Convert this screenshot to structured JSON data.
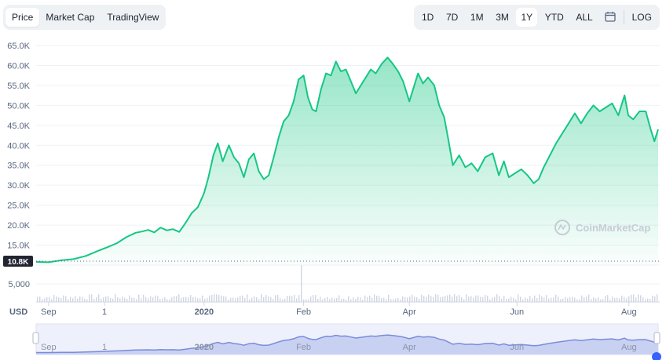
{
  "view_tabs": [
    {
      "label": "Price",
      "active": true
    },
    {
      "label": "Market Cap",
      "active": false
    },
    {
      "label": "TradingView",
      "active": false
    }
  ],
  "ranges": [
    {
      "label": "1D",
      "active": false
    },
    {
      "label": "7D",
      "active": false
    },
    {
      "label": "1M",
      "active": false
    },
    {
      "label": "3M",
      "active": false
    },
    {
      "label": "1Y",
      "active": true
    },
    {
      "label": "YTD",
      "active": false
    },
    {
      "label": "ALL",
      "active": false
    }
  ],
  "calendar_icon": "calendar-icon",
  "log_label": "LOG",
  "watermark": "CoinMarketCap",
  "currency_label": "USD",
  "colors": {
    "line": "#16c784",
    "navigator": "#7b8cd9",
    "label_bg": "#222531"
  },
  "chart_data": {
    "type": "area",
    "y_ticks": [
      "65.0K",
      "60.0K",
      "55.0K",
      "50.0K",
      "45.0K",
      "40.0K",
      "35.0K",
      "30.0K",
      "25.0K",
      "20.0K",
      "15.0K"
    ],
    "ylim": [
      10000,
      65000
    ],
    "start_price_label": "10.8K",
    "volume_tick": "5,000",
    "x_ticks": [
      "Sep",
      "1",
      "2020",
      "Feb",
      "Apr",
      "Jun",
      "Aug"
    ],
    "navigator_ticks": [
      "Sep",
      "1",
      "2020",
      "Feb",
      "Apr",
      "Jun",
      "Aug"
    ],
    "x_tick_pos": [
      0.02,
      0.11,
      0.27,
      0.43,
      0.6,
      0.773,
      0.953
    ],
    "price": [
      [
        0.0,
        10800
      ],
      [
        0.02,
        10700
      ],
      [
        0.04,
        11200
      ],
      [
        0.06,
        11500
      ],
      [
        0.08,
        12300
      ],
      [
        0.1,
        13600
      ],
      [
        0.115,
        14500
      ],
      [
        0.13,
        15500
      ],
      [
        0.145,
        17000
      ],
      [
        0.16,
        18100
      ],
      [
        0.17,
        18400
      ],
      [
        0.18,
        18800
      ],
      [
        0.19,
        18200
      ],
      [
        0.2,
        19400
      ],
      [
        0.21,
        18700
      ],
      [
        0.22,
        19000
      ],
      [
        0.23,
        18300
      ],
      [
        0.24,
        20500
      ],
      [
        0.25,
        23000
      ],
      [
        0.26,
        24500
      ],
      [
        0.27,
        28000
      ],
      [
        0.277,
        32000
      ],
      [
        0.285,
        37500
      ],
      [
        0.292,
        40500
      ],
      [
        0.3,
        36000
      ],
      [
        0.31,
        40000
      ],
      [
        0.318,
        37000
      ],
      [
        0.326,
        35500
      ],
      [
        0.334,
        32000
      ],
      [
        0.342,
        36500
      ],
      [
        0.35,
        38000
      ],
      [
        0.358,
        33500
      ],
      [
        0.366,
        31500
      ],
      [
        0.374,
        32500
      ],
      [
        0.382,
        37000
      ],
      [
        0.39,
        42000
      ],
      [
        0.398,
        46000
      ],
      [
        0.406,
        47500
      ],
      [
        0.414,
        51000
      ],
      [
        0.422,
        56500
      ],
      [
        0.43,
        57500
      ],
      [
        0.437,
        52000
      ],
      [
        0.444,
        49000
      ],
      [
        0.45,
        48500
      ],
      [
        0.458,
        54000
      ],
      [
        0.466,
        58000
      ],
      [
        0.474,
        57500
      ],
      [
        0.482,
        61000
      ],
      [
        0.49,
        58500
      ],
      [
        0.498,
        59000
      ],
      [
        0.506,
        56000
      ],
      [
        0.514,
        53000
      ],
      [
        0.522,
        55000
      ],
      [
        0.53,
        57000
      ],
      [
        0.538,
        59000
      ],
      [
        0.546,
        58000
      ],
      [
        0.556,
        60500
      ],
      [
        0.565,
        62000
      ],
      [
        0.573,
        60500
      ],
      [
        0.582,
        58500
      ],
      [
        0.59,
        56000
      ],
      [
        0.6,
        51000
      ],
      [
        0.608,
        55000
      ],
      [
        0.614,
        58000
      ],
      [
        0.622,
        55500
      ],
      [
        0.63,
        57000
      ],
      [
        0.64,
        55000
      ],
      [
        0.648,
        50000
      ],
      [
        0.656,
        47000
      ],
      [
        0.662,
        42000
      ],
      [
        0.67,
        35000
      ],
      [
        0.68,
        37500
      ],
      [
        0.69,
        34500
      ],
      [
        0.7,
        35500
      ],
      [
        0.71,
        33500
      ],
      [
        0.722,
        37000
      ],
      [
        0.734,
        38000
      ],
      [
        0.744,
        32500
      ],
      [
        0.752,
        36000
      ],
      [
        0.76,
        32000
      ],
      [
        0.77,
        33000
      ],
      [
        0.78,
        34000
      ],
      [
        0.79,
        32500
      ],
      [
        0.8,
        30500
      ],
      [
        0.808,
        31500
      ],
      [
        0.816,
        34500
      ],
      [
        0.826,
        37500
      ],
      [
        0.836,
        40500
      ],
      [
        0.846,
        43000
      ],
      [
        0.856,
        45500
      ],
      [
        0.866,
        48000
      ],
      [
        0.876,
        45500
      ],
      [
        0.886,
        48000
      ],
      [
        0.896,
        50000
      ],
      [
        0.906,
        48500
      ],
      [
        0.916,
        49500
      ],
      [
        0.926,
        50500
      ],
      [
        0.936,
        47500
      ],
      [
        0.946,
        52500
      ],
      [
        0.952,
        47500
      ],
      [
        0.96,
        46500
      ],
      [
        0.97,
        48500
      ],
      [
        0.98,
        48500
      ],
      [
        0.988,
        44000
      ],
      [
        0.994,
        41000
      ],
      [
        1.0,
        44000
      ]
    ]
  }
}
